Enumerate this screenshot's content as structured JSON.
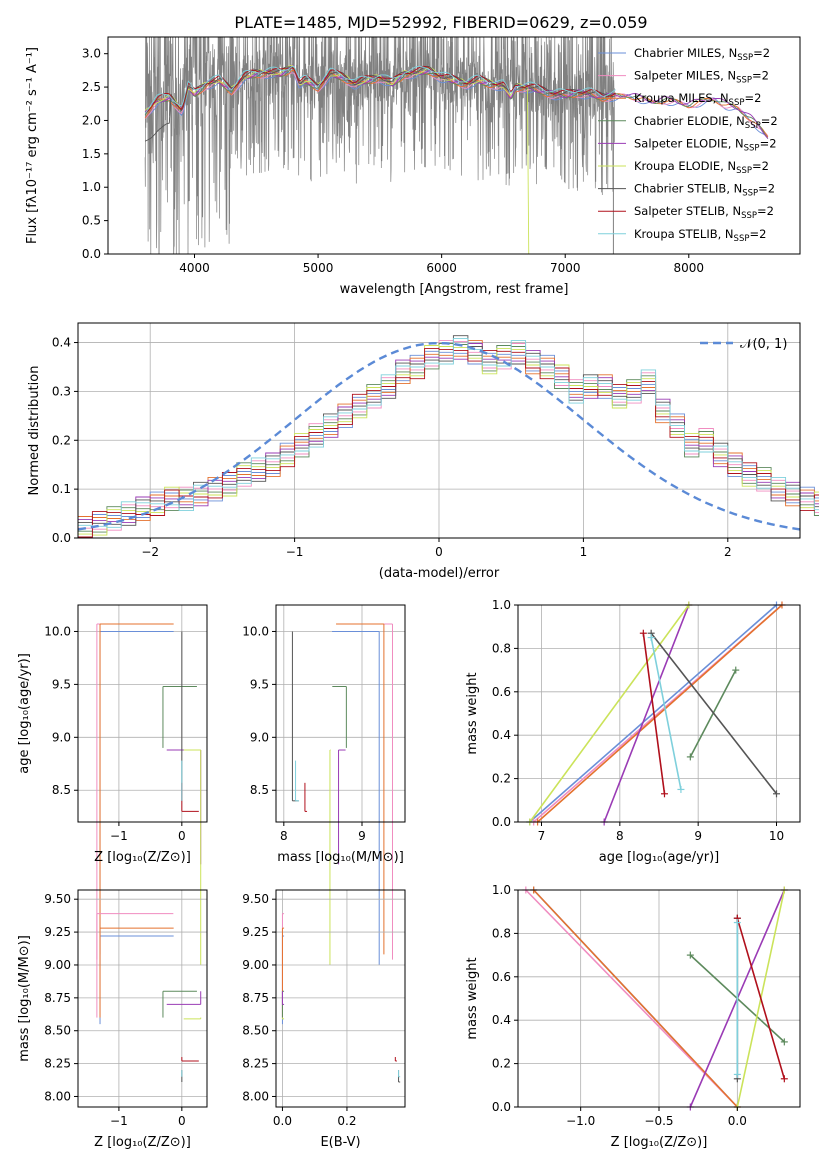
{
  "figure": {
    "title": "PLATE=1485, MJD=52992, FIBERID=0629, z=0.059"
  },
  "colors": {
    "data_spectrum": "#808080",
    "normal_curve": "#5b8ad6",
    "grid": "#b0b0b0"
  },
  "models": [
    {
      "name": "Chabrier MILES",
      "color": "#6a8fd8"
    },
    {
      "name": "Salpeter MILES",
      "color": "#f08cc0"
    },
    {
      "name": "Kroupa MILES",
      "color": "#e4722e"
    },
    {
      "name": "Chabrier ELODIE",
      "color": "#5d8a5d"
    },
    {
      "name": "Salpeter ELODIE",
      "color": "#9a3bb5"
    },
    {
      "name": "Kroupa ELODIE",
      "color": "#cbe35a"
    },
    {
      "name": "Chabrier STELIB",
      "color": "#555555"
    },
    {
      "name": "Salpeter STELIB",
      "color": "#b0101c"
    },
    {
      "name": "Kroupa STELIB",
      "color": "#7fd0dc"
    }
  ],
  "legend_suffix": ", N",
  "legend_sub": "SSP",
  "legend_tail": "=2",
  "chart_data": [
    {
      "id": "spectrum",
      "type": "line",
      "xlabel": "wavelength [Angstrom, rest frame]",
      "ylabel": "Flux [fλ10⁻¹⁷ erg cm⁻² s⁻¹ A⁻¹]",
      "xlim": [
        3300,
        8900
      ],
      "ylim": [
        0,
        3.25
      ],
      "xticks": [
        4000,
        5000,
        6000,
        7000,
        8000
      ],
      "yticks": [
        0.0,
        0.5,
        1.0,
        1.5,
        2.0,
        2.5,
        3.0
      ],
      "grid": false,
      "legend": "right",
      "data_range": [
        3600,
        7400
      ],
      "model_continuum": {
        "x": [
          3600,
          3700,
          3800,
          3900,
          3950,
          4000,
          4100,
          4200,
          4300,
          4400,
          4500,
          4600,
          4700,
          4800,
          4850,
          4900,
          5000,
          5100,
          5200,
          5300,
          5400,
          5500,
          5600,
          5700,
          5800,
          5900,
          6000,
          6100,
          6200,
          6300,
          6400,
          6500,
          6560,
          6600,
          6700,
          6800,
          6900,
          7000,
          7100,
          7200,
          7300,
          7400,
          7500,
          7600,
          7700,
          7800,
          7900,
          8000,
          8100,
          8200,
          8300,
          8400,
          8500,
          8650
        ],
        "y": [
          2.1,
          2.3,
          2.35,
          2.15,
          2.5,
          2.4,
          2.55,
          2.6,
          2.45,
          2.65,
          2.7,
          2.72,
          2.7,
          2.8,
          2.55,
          2.6,
          2.5,
          2.7,
          2.65,
          2.55,
          2.6,
          2.65,
          2.55,
          2.7,
          2.72,
          2.75,
          2.65,
          2.6,
          2.55,
          2.6,
          2.55,
          2.52,
          2.35,
          2.5,
          2.5,
          2.45,
          2.4,
          2.38,
          2.42,
          2.4,
          2.35,
          2.38,
          2.4,
          2.35,
          2.3,
          2.32,
          2.3,
          2.25,
          2.3,
          2.35,
          2.25,
          2.2,
          2.05,
          1.75
        ]
      }
    },
    {
      "id": "residuals",
      "type": "line",
      "xlabel": "(data-model)/error",
      "ylabel": "Normed distribution",
      "xlim": [
        -2.5,
        2.5
      ],
      "ylim": [
        0,
        0.44
      ],
      "xticks": [
        -2,
        -1,
        0,
        1,
        2
      ],
      "yticks": [
        0.0,
        0.1,
        0.2,
        0.3,
        0.4
      ],
      "grid": true,
      "legend": "top-right",
      "legend_label": "𝒩(0, 1)",
      "bin_width": 0.1,
      "histogram": [
        0.02,
        0.03,
        0.04,
        0.05,
        0.06,
        0.07,
        0.08,
        0.08,
        0.09,
        0.1,
        0.11,
        0.13,
        0.14,
        0.15,
        0.17,
        0.19,
        0.21,
        0.23,
        0.25,
        0.27,
        0.29,
        0.31,
        0.34,
        0.35,
        0.37,
        0.38,
        0.39,
        0.38,
        0.36,
        0.37,
        0.38,
        0.36,
        0.35,
        0.33,
        0.3,
        0.31,
        0.31,
        0.29,
        0.3,
        0.32,
        0.26,
        0.23,
        0.19,
        0.2,
        0.17,
        0.15,
        0.13,
        0.12,
        0.1,
        0.09,
        0.08,
        0.07,
        0.06,
        0.05,
        0.05
      ]
    },
    {
      "id": "age-vs-Z",
      "type": "scatter",
      "xlabel": "Z [log₁₀(Z/Z⊙)]",
      "ylabel": "age  [log₁₀(age/yr)]",
      "xlim": [
        -1.65,
        0.4
      ],
      "ylim": [
        8.2,
        10.25
      ],
      "xticks": [
        -1,
        0
      ],
      "yticks": [
        8.5,
        9.0,
        9.5,
        10.0
      ],
      "grid": true
    },
    {
      "id": "age-vs-mass",
      "type": "scatter",
      "xlabel": "mass [log₁₀(M/M⊙)]",
      "ylabel": "",
      "xlim": [
        7.9,
        9.55
      ],
      "ylim": [
        8.2,
        10.25
      ],
      "xticks": [
        8,
        9
      ],
      "yticks": [
        8.5,
        9.0,
        9.5,
        10.0
      ],
      "grid": true
    },
    {
      "id": "weight-vs-age",
      "type": "line",
      "xlabel": "age  [log₁₀(age/yr)]",
      "ylabel": "mass weight",
      "xlim": [
        6.7,
        10.3
      ],
      "ylim": [
        0,
        1.0
      ],
      "xticks": [
        7,
        8,
        9,
        10
      ],
      "yticks": [
        0.0,
        0.2,
        0.4,
        0.6,
        0.8,
        1.0
      ],
      "grid": true
    },
    {
      "id": "mass-vs-Z",
      "type": "scatter",
      "xlabel": "Z [log₁₀(Z/Z⊙)]",
      "ylabel": "mass [log₁₀(M/M⊙)]",
      "xlim": [
        -1.65,
        0.4
      ],
      "ylim": [
        7.92,
        9.57
      ],
      "xticks": [
        -1,
        0
      ],
      "yticks": [
        8.0,
        8.25,
        8.5,
        8.75,
        9.0,
        9.25,
        9.5
      ],
      "grid": true
    },
    {
      "id": "mass-vs-EBV",
      "type": "scatter",
      "xlabel": "E(B-V)",
      "ylabel": "",
      "xlim": [
        -0.02,
        0.38
      ],
      "ylim": [
        7.92,
        9.57
      ],
      "xticks": [
        0.0,
        0.2
      ],
      "yticks": [
        8.0,
        8.25,
        8.5,
        8.75,
        9.0,
        9.25,
        9.5
      ],
      "grid": true
    },
    {
      "id": "weight-vs-Z",
      "type": "line",
      "xlabel": "Z [log₁₀(Z/Z⊙)]",
      "ylabel": "mass weight",
      "xlim": [
        -1.4,
        0.4
      ],
      "ylim": [
        0,
        1.0
      ],
      "xticks": [
        -1.0,
        -0.5,
        0.0
      ],
      "yticks": [
        0.0,
        0.2,
        0.4,
        0.6,
        0.8,
        1.0
      ],
      "grid": true
    }
  ],
  "ssp": [
    {
      "model": 0,
      "age": [
        10.0,
        6.85
      ],
      "Z": [
        -1.3,
        0.0
      ],
      "mass": [
        9.22,
        8.55
      ],
      "ebv": 0.0,
      "weight": [
        1.0,
        0.0
      ]
    },
    {
      "model": 1,
      "age": [
        10.07,
        6.9
      ],
      "Z": [
        -1.35,
        0.0
      ],
      "mass": [
        9.39,
        8.6
      ],
      "ebv": 0.0,
      "weight": [
        1.0,
        0.0
      ]
    },
    {
      "model": 2,
      "age": [
        10.07,
        6.95
      ],
      "Z": [
        -1.3,
        0.0
      ],
      "mass": [
        9.28,
        8.6
      ],
      "ebv": 0.0,
      "weight": [
        1.0,
        0.0
      ]
    },
    {
      "model": 3,
      "age": [
        9.48,
        8.9
      ],
      "Z": [
        -0.3,
        0.3
      ],
      "mass": [
        8.8,
        8.6
      ],
      "ebv": 0.0,
      "weight": [
        0.7,
        0.3
      ]
    },
    {
      "model": 4,
      "age": [
        8.88,
        7.8
      ],
      "Z": [
        0.3,
        -0.3
      ],
      "mass": [
        8.7,
        8.8
      ],
      "ebv": 0.0,
      "weight": [
        1.0,
        0.0
      ]
    },
    {
      "model": 5,
      "age": [
        8.88,
        6.85
      ],
      "Z": [
        0.3,
        0.0
      ],
      "mass": [
        8.59,
        8.6
      ],
      "ebv": 0.0,
      "weight": [
        1.0,
        0.0
      ]
    },
    {
      "model": 6,
      "age": [
        8.4,
        10.0
      ],
      "Z": [
        0.0,
        0.0
      ],
      "mass": [
        8.11,
        8.2
      ],
      "ebv": 0.36,
      "weight": [
        0.87,
        0.13
      ]
    },
    {
      "model": 7,
      "age": [
        8.3,
        8.57
      ],
      "Z": [
        0.0,
        0.3
      ],
      "mass": [
        8.27,
        8.3
      ],
      "ebv": 0.35,
      "weight": [
        0.87,
        0.13
      ]
    },
    {
      "model": 8,
      "age": [
        8.4,
        8.78
      ],
      "Z": [
        0.0,
        0.0
      ],
      "mass": [
        8.15,
        8.2
      ],
      "ebv": 0.36,
      "weight": [
        0.85,
        0.15
      ]
    }
  ]
}
